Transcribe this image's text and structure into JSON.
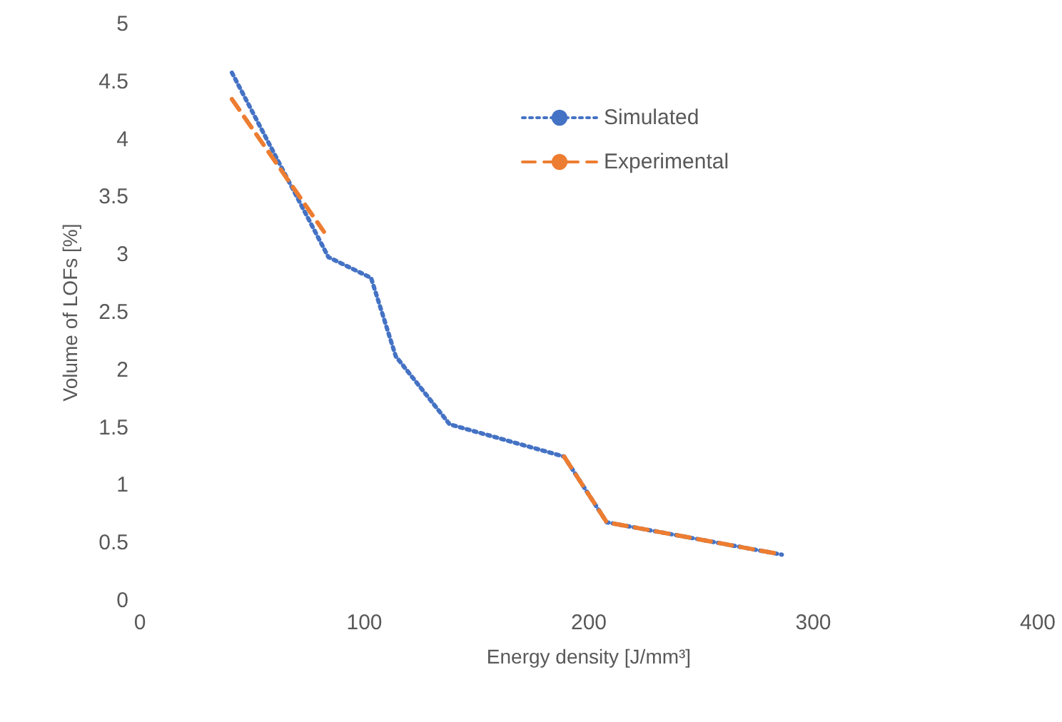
{
  "chart_data": {
    "type": "line",
    "xlabel": "Energy density [J/mm³]",
    "ylabel": "Volume of LOFs [%]",
    "xlim": [
      0,
      400
    ],
    "xticks": [
      0,
      100,
      200,
      300,
      400
    ],
    "ylim": [
      0,
      5
    ],
    "yticks": [
      0,
      0.5,
      1,
      1.5,
      2,
      2.5,
      3,
      3.5,
      4,
      4.5,
      5
    ],
    "grid": false,
    "legend": "top right",
    "marker": "none",
    "series": [
      {
        "name": "Simulated",
        "color": "#4472c4",
        "line_style": "dotted",
        "x": [
          41,
          84,
          103,
          114,
          138,
          189,
          208,
          286
        ],
        "values": [
          4.58,
          2.98,
          2.8,
          2.12,
          1.53,
          1.25,
          0.68,
          0.4
        ]
      },
      {
        "name": "Experimental",
        "color": "#ed7d31",
        "line_style": "dashed",
        "x": [
          41,
          82,
          150,
          189,
          208,
          286
        ],
        "values": [
          4.35,
          3.2,
          null,
          1.25,
          0.68,
          0.4
        ]
      }
    ]
  }
}
